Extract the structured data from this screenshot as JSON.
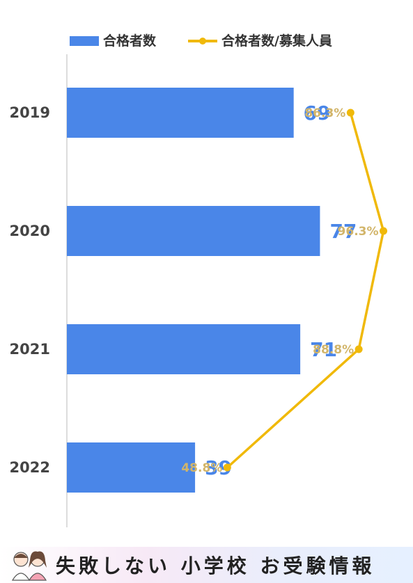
{
  "chart_data": {
    "type": "bar",
    "orientation": "horizontal",
    "categories": [
      "2019",
      "2020",
      "2021",
      "2022"
    ],
    "series": [
      {
        "name": "合格者数",
        "type": "bar",
        "values": [
          69,
          77,
          71,
          39
        ],
        "color": "#4a86e8"
      },
      {
        "name": "合格者数/募集人員",
        "type": "line",
        "values": [
          86.3,
          96.3,
          88.8,
          48.8
        ],
        "color": "#f0b90a"
      }
    ],
    "bar_value_labels": [
      "69",
      "77",
      "71",
      "39"
    ],
    "line_value_labels": [
      "86.3%",
      "96.3%",
      "88.8%",
      "48.8%"
    ],
    "xlim": [
      0,
      100
    ],
    "legend_position": "top",
    "grid": false,
    "label_colors": {
      "bar": "#4a86e8",
      "line": "#d2b56a"
    }
  },
  "footer": {
    "banner_text": "失敗しない 小学校 お受験情報"
  }
}
